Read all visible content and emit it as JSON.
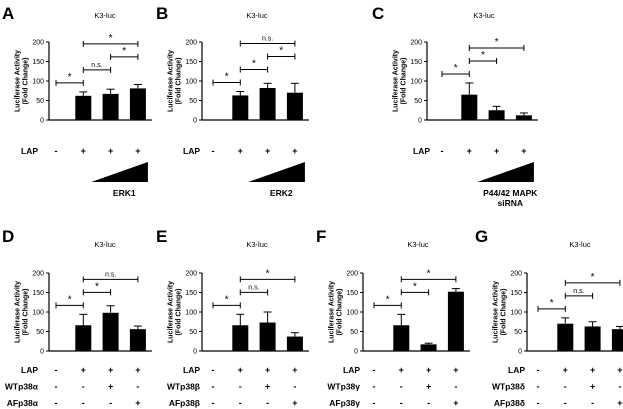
{
  "chart_data": [
    {
      "type": "bar",
      "panel_letter": "A",
      "title": "K3-luc",
      "ylabel": "Luciferase Activity (Fold Change)",
      "ylim": [
        0,
        200
      ],
      "yticks": [
        0,
        50,
        100,
        150,
        200
      ],
      "values": [
        1,
        62,
        67,
        81
      ],
      "errors": [
        0,
        10,
        12,
        10
      ],
      "bar_colors": [
        "#000000",
        "#000000",
        "#000000",
        "#000000"
      ],
      "significance": [
        {
          "from": 0,
          "to": 1,
          "label": "*"
        },
        {
          "from": 1,
          "to": 2,
          "label": "n.s."
        },
        {
          "from": 2,
          "to": 3,
          "label": "*"
        },
        {
          "from": 1,
          "to": 3,
          "label": "*"
        }
      ],
      "rows": [
        {
          "label": "LAP",
          "marks": [
            "-",
            "+",
            "+",
            "+"
          ]
        }
      ],
      "wedge": true,
      "bottom_label": [
        "ERK1"
      ]
    },
    {
      "type": "bar",
      "panel_letter": "B",
      "title": "K3-luc",
      "ylabel": "Luciferase Activity (Fold Change)",
      "ylim": [
        0,
        200
      ],
      "yticks": [
        0,
        50,
        100,
        150,
        200
      ],
      "values": [
        1,
        63,
        82,
        70
      ],
      "errors": [
        0,
        10,
        12,
        24
      ],
      "bar_colors": [
        "#000000",
        "#000000",
        "#000000",
        "#000000"
      ],
      "significance": [
        {
          "from": 0,
          "to": 1,
          "label": "*"
        },
        {
          "from": 1,
          "to": 2,
          "label": "*"
        },
        {
          "from": 2,
          "to": 3,
          "label": "*"
        },
        {
          "from": 1,
          "to": 3,
          "label": "n.s."
        }
      ],
      "rows": [
        {
          "label": "LAP",
          "marks": [
            "-",
            "+",
            "+",
            "+"
          ]
        }
      ],
      "wedge": true,
      "bottom_label": [
        "ERK2"
      ]
    },
    {
      "type": "bar",
      "panel_letter": "C",
      "title": "K3-luc",
      "ylabel": "Luciferase Activity (Fold Change)",
      "ylim": [
        0,
        200
      ],
      "yticks": [
        0,
        50,
        100,
        150,
        200
      ],
      "values": [
        1,
        65,
        25,
        12
      ],
      "errors": [
        0,
        30,
        10,
        6
      ],
      "bar_colors": [
        "#000000",
        "#000000",
        "#000000",
        "#000000"
      ],
      "significance": [
        {
          "from": 0,
          "to": 1,
          "label": "*"
        },
        {
          "from": 1,
          "to": 2,
          "label": "*"
        },
        {
          "from": 1,
          "to": 3,
          "label": "*"
        }
      ],
      "rows": [
        {
          "label": "LAP",
          "marks": [
            "-",
            "+",
            "+",
            "+"
          ]
        }
      ],
      "wedge": true,
      "bottom_label": [
        "P44/42 MAPK",
        "siRNA"
      ]
    },
    {
      "type": "bar",
      "panel_letter": "D",
      "title": "K3-luc",
      "ylabel": "Luciferase Activity (Fold Change)",
      "ylim": [
        0,
        200
      ],
      "yticks": [
        0,
        50,
        100,
        150,
        200
      ],
      "values": [
        1,
        66,
        98,
        56
      ],
      "errors": [
        0,
        28,
        18,
        8
      ],
      "bar_colors": [
        "#000000",
        "#000000",
        "#000000",
        "#000000"
      ],
      "significance": [
        {
          "from": 0,
          "to": 1,
          "label": "*"
        },
        {
          "from": 1,
          "to": 2,
          "label": "*"
        },
        {
          "from": 1,
          "to": 3,
          "label": "n.s."
        }
      ],
      "rows": [
        {
          "label": "LAP",
          "marks": [
            "-",
            "+",
            "+",
            "+"
          ]
        },
        {
          "label": "WTp38α",
          "marks": [
            "-",
            "-",
            "+",
            "-"
          ]
        },
        {
          "label": "AFp38α",
          "marks": [
            "-",
            "-",
            "-",
            "+"
          ]
        }
      ],
      "wedge": false,
      "bottom_label": []
    },
    {
      "type": "bar",
      "panel_letter": "E",
      "title": "K3-luc",
      "ylabel": "Luciferase Activity (Fold Change)",
      "ylim": [
        0,
        200
      ],
      "yticks": [
        0,
        50,
        100,
        150,
        200
      ],
      "values": [
        1,
        66,
        73,
        37
      ],
      "errors": [
        0,
        28,
        27,
        10
      ],
      "bar_colors": [
        "#000000",
        "#000000",
        "#000000",
        "#000000"
      ],
      "significance": [
        {
          "from": 0,
          "to": 1,
          "label": "*"
        },
        {
          "from": 1,
          "to": 2,
          "label": "n.s."
        },
        {
          "from": 1,
          "to": 3,
          "label": "*"
        }
      ],
      "rows": [
        {
          "label": "LAP",
          "marks": [
            "-",
            "+",
            "+",
            "+"
          ]
        },
        {
          "label": "WTp38β",
          "marks": [
            "-",
            "-",
            "+",
            "-"
          ]
        },
        {
          "label": "AFp38β",
          "marks": [
            "-",
            "-",
            "-",
            "+"
          ]
        }
      ],
      "wedge": false,
      "bottom_label": []
    },
    {
      "type": "bar",
      "panel_letter": "F",
      "title": "K3-luc",
      "ylabel": "Luciferase Activity (Fold Change)",
      "ylim": [
        0,
        200
      ],
      "yticks": [
        0,
        50,
        100,
        150,
        200
      ],
      "values": [
        1,
        66,
        17,
        152
      ],
      "errors": [
        0,
        28,
        3,
        8
      ],
      "bar_colors": [
        "#000000",
        "#000000",
        "#000000",
        "#000000"
      ],
      "significance": [
        {
          "from": 0,
          "to": 1,
          "label": "*"
        },
        {
          "from": 1,
          "to": 2,
          "label": "*"
        },
        {
          "from": 1,
          "to": 3,
          "label": "*"
        }
      ],
      "rows": [
        {
          "label": "LAP",
          "marks": [
            "-",
            "+",
            "+",
            "+"
          ]
        },
        {
          "label": "WTp38γ",
          "marks": [
            "-",
            "-",
            "+",
            "-"
          ]
        },
        {
          "label": "AFp38γ",
          "marks": [
            "-",
            "-",
            "-",
            "+"
          ]
        }
      ],
      "wedge": false,
      "bottom_label": []
    },
    {
      "type": "bar",
      "panel_letter": "G",
      "title": "K3-luc",
      "ylabel": "Luciferase Activity (Fold Change)",
      "ylim": [
        0,
        200
      ],
      "yticks": [
        0,
        50,
        100,
        150,
        200
      ],
      "values": [
        1,
        70,
        63,
        56
      ],
      "errors": [
        0,
        15,
        12,
        7
      ],
      "bar_colors": [
        "#000000",
        "#000000",
        "#000000",
        "#000000"
      ],
      "significance": [
        {
          "from": 0,
          "to": 1,
          "label": "*"
        },
        {
          "from": 1,
          "to": 2,
          "label": "n.s."
        },
        {
          "from": 1,
          "to": 3,
          "label": "*"
        }
      ],
      "rows": [
        {
          "label": "LAP",
          "marks": [
            "-",
            "+",
            "+",
            "+"
          ]
        },
        {
          "label": "WTp38δ",
          "marks": [
            "-",
            "-",
            "+",
            "-"
          ]
        },
        {
          "label": "AFp38δ",
          "marks": [
            "-",
            "-",
            "-",
            "+"
          ]
        }
      ],
      "wedge": false,
      "bottom_label": []
    }
  ]
}
